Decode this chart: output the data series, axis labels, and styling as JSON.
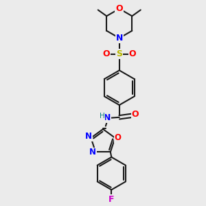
{
  "background_color": "#ebebeb",
  "bond_color": "#1a1a1a",
  "colors": {
    "O": "#ff0000",
    "N": "#0000ff",
    "S": "#b8b800",
    "F": "#cc00cc",
    "H": "#008080",
    "C": "#1a1a1a"
  },
  "figsize": [
    3.0,
    3.0
  ],
  "dpi": 100
}
